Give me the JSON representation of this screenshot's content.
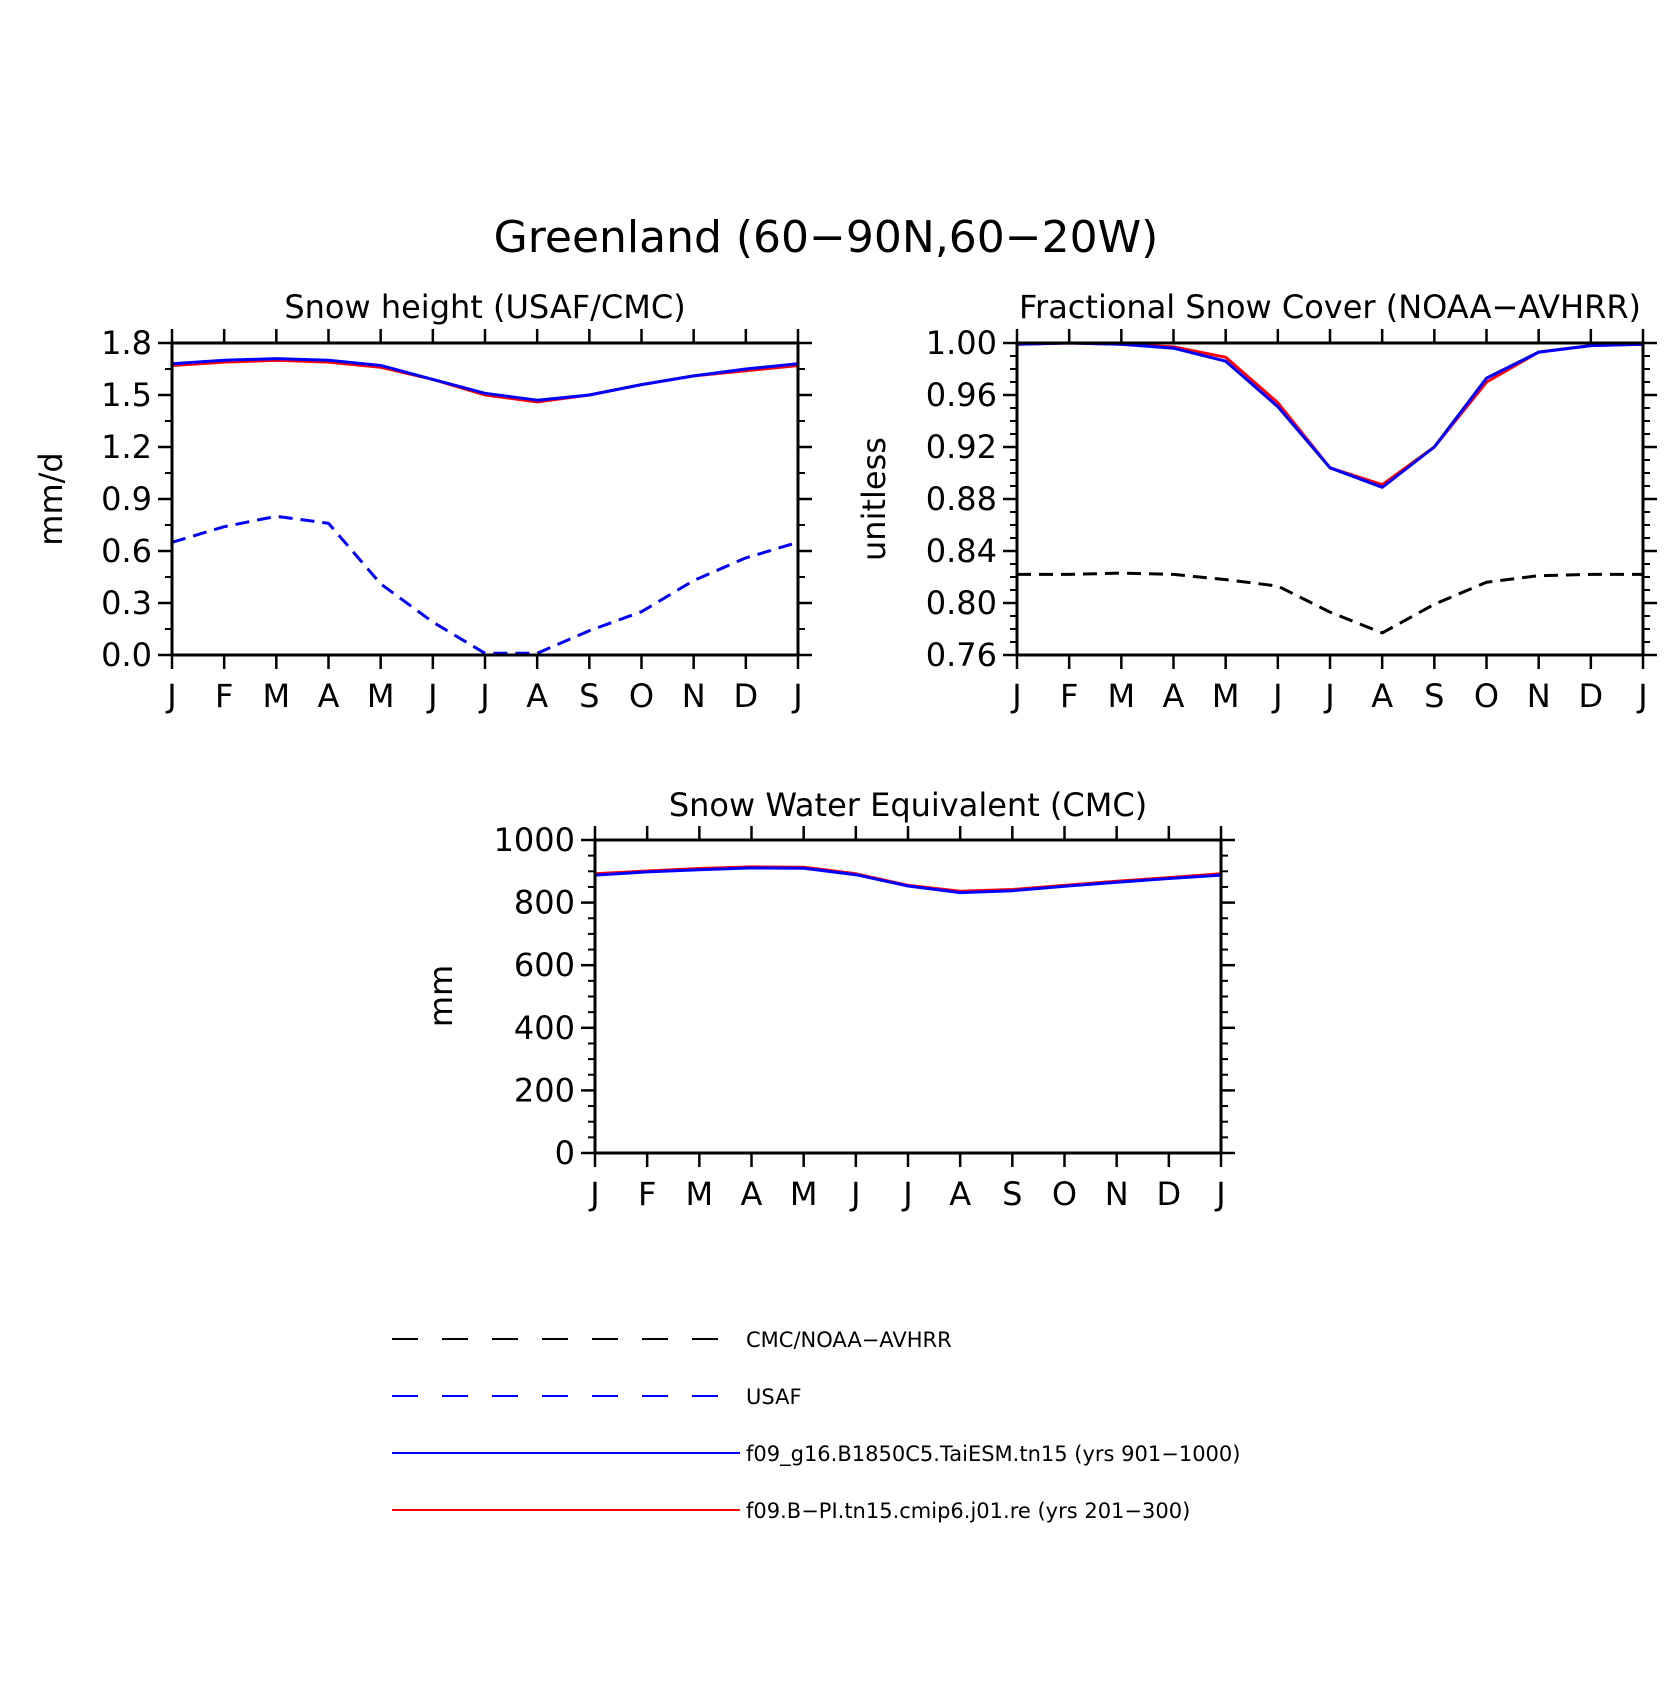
{
  "figure": {
    "title": "Greenland (60−90N,60−20W)"
  },
  "colors": {
    "model_a": "#0000ff",
    "model_b": "#ff0000",
    "obs_cmc": "#000000",
    "obs_usaf": "#0000ff"
  },
  "chart_data": [
    {
      "type": "line",
      "title": "Snow height (USAF/CMC)",
      "xlabel": "",
      "ylabel": "mm/d",
      "categories": [
        "J",
        "F",
        "M",
        "A",
        "M",
        "J",
        "J",
        "A",
        "S",
        "O",
        "N",
        "D",
        "J"
      ],
      "yticks": [
        "0.0",
        "0.3",
        "0.6",
        "0.9",
        "1.2",
        "1.5",
        "1.8"
      ],
      "ylim": [
        0,
        1.8
      ],
      "grid": false,
      "series": [
        {
          "name": "f09.B−PI.tn15.cmip6.j01.re (yrs 201−300)",
          "color": "#ff0000",
          "style": "solid",
          "values": [
            1.67,
            1.69,
            1.7,
            1.69,
            1.66,
            1.59,
            1.5,
            1.46,
            1.5,
            1.56,
            1.61,
            1.64,
            1.67
          ]
        },
        {
          "name": "f09_g16.B1850C5.TaiESM.tn15 (yrs 901−1000)",
          "color": "#0000ff",
          "style": "solid",
          "values": [
            1.68,
            1.7,
            1.71,
            1.7,
            1.67,
            1.59,
            1.51,
            1.47,
            1.5,
            1.56,
            1.61,
            1.65,
            1.68
          ]
        },
        {
          "name": "USAF",
          "color": "#0000ff",
          "style": "dashed",
          "values": [
            0.65,
            0.74,
            0.8,
            0.76,
            0.41,
            0.19,
            0.01,
            0.01,
            0.14,
            0.25,
            0.43,
            0.56,
            0.65
          ]
        },
        {
          "name": "CMC/NOAA−AVHRR",
          "color": "#000000",
          "style": "dashed",
          "values": [
            0,
            0,
            0,
            0,
            0,
            0,
            0,
            0,
            0,
            0,
            0,
            0,
            0
          ]
        }
      ]
    },
    {
      "type": "line",
      "title": "Fractional Snow Cover (NOAA−AVHRR)",
      "xlabel": "",
      "ylabel": "unitless",
      "categories": [
        "J",
        "F",
        "M",
        "A",
        "M",
        "J",
        "J",
        "A",
        "S",
        "O",
        "N",
        "D",
        "J"
      ],
      "yticks": [
        "0.76",
        "0.80",
        "0.84",
        "0.88",
        "0.92",
        "0.96",
        "1.00"
      ],
      "ylim": [
        0.76,
        1.0
      ],
      "grid": false,
      "series": [
        {
          "name": "f09.B−PI.tn15.cmip6.j01.re (yrs 201−300)",
          "color": "#ff0000",
          "style": "solid",
          "values": [
            0.999,
            1.0,
            0.999,
            0.997,
            0.989,
            0.954,
            0.904,
            0.891,
            0.92,
            0.97,
            0.993,
            0.998,
            0.999
          ]
        },
        {
          "name": "f09_g16.B1850C5.TaiESM.tn15 (yrs 901−1000)",
          "color": "#0000ff",
          "style": "solid",
          "values": [
            0.999,
            1.0,
            0.999,
            0.996,
            0.986,
            0.951,
            0.904,
            0.889,
            0.92,
            0.973,
            0.993,
            0.998,
            0.999
          ]
        },
        {
          "name": "CMC/NOAA−AVHRR",
          "color": "#000000",
          "style": "dashed",
          "values": [
            0.822,
            0.822,
            0.823,
            0.822,
            0.818,
            0.813,
            0.793,
            0.777,
            0.799,
            0.816,
            0.821,
            0.822,
            0.822
          ]
        }
      ]
    },
    {
      "type": "line",
      "title": "Snow Water Equivalent (CMC)",
      "xlabel": "",
      "ylabel": "mm",
      "categories": [
        "J",
        "F",
        "M",
        "A",
        "M",
        "J",
        "J",
        "A",
        "S",
        "O",
        "N",
        "D",
        "J"
      ],
      "yticks": [
        "0",
        "200",
        "400",
        "600",
        "800",
        "1000"
      ],
      "ylim": [
        0,
        1000
      ],
      "grid": false,
      "series": [
        {
          "name": "f09.B−PI.tn15.cmip6.j01.re (yrs 201−300)",
          "color": "#ff0000",
          "style": "solid",
          "values": [
            892,
            901,
            909,
            914,
            913,
            892,
            855,
            836,
            842,
            855,
            868,
            880,
            892
          ]
        },
        {
          "name": "f09_g16.B1850C5.TaiESM.tn15 (yrs 901−1000)",
          "color": "#0000ff",
          "style": "solid",
          "values": [
            888,
            898,
            905,
            911,
            910,
            889,
            853,
            832,
            838,
            852,
            865,
            877,
            888
          ]
        },
        {
          "name": "CMC/NOAA−AVHRR",
          "color": "#000000",
          "style": "dashed",
          "values": [
            0,
            0,
            0,
            0,
            0,
            0,
            0,
            0,
            0,
            0,
            0,
            0,
            0
          ]
        }
      ]
    }
  ],
  "legend": {
    "items": [
      {
        "label": "CMC/NOAA−AVHRR",
        "color": "#000000",
        "style": "dashed"
      },
      {
        "label": "USAF",
        "color": "#0000ff",
        "style": "dashed"
      },
      {
        "label": "f09_g16.B1850C5.TaiESM.tn15 (yrs 901−1000)",
        "color": "#0000ff",
        "style": "solid"
      },
      {
        "label": "f09.B−PI.tn15.cmip6.j01.re (yrs 201−300)",
        "color": "#ff0000",
        "style": "solid"
      }
    ]
  }
}
